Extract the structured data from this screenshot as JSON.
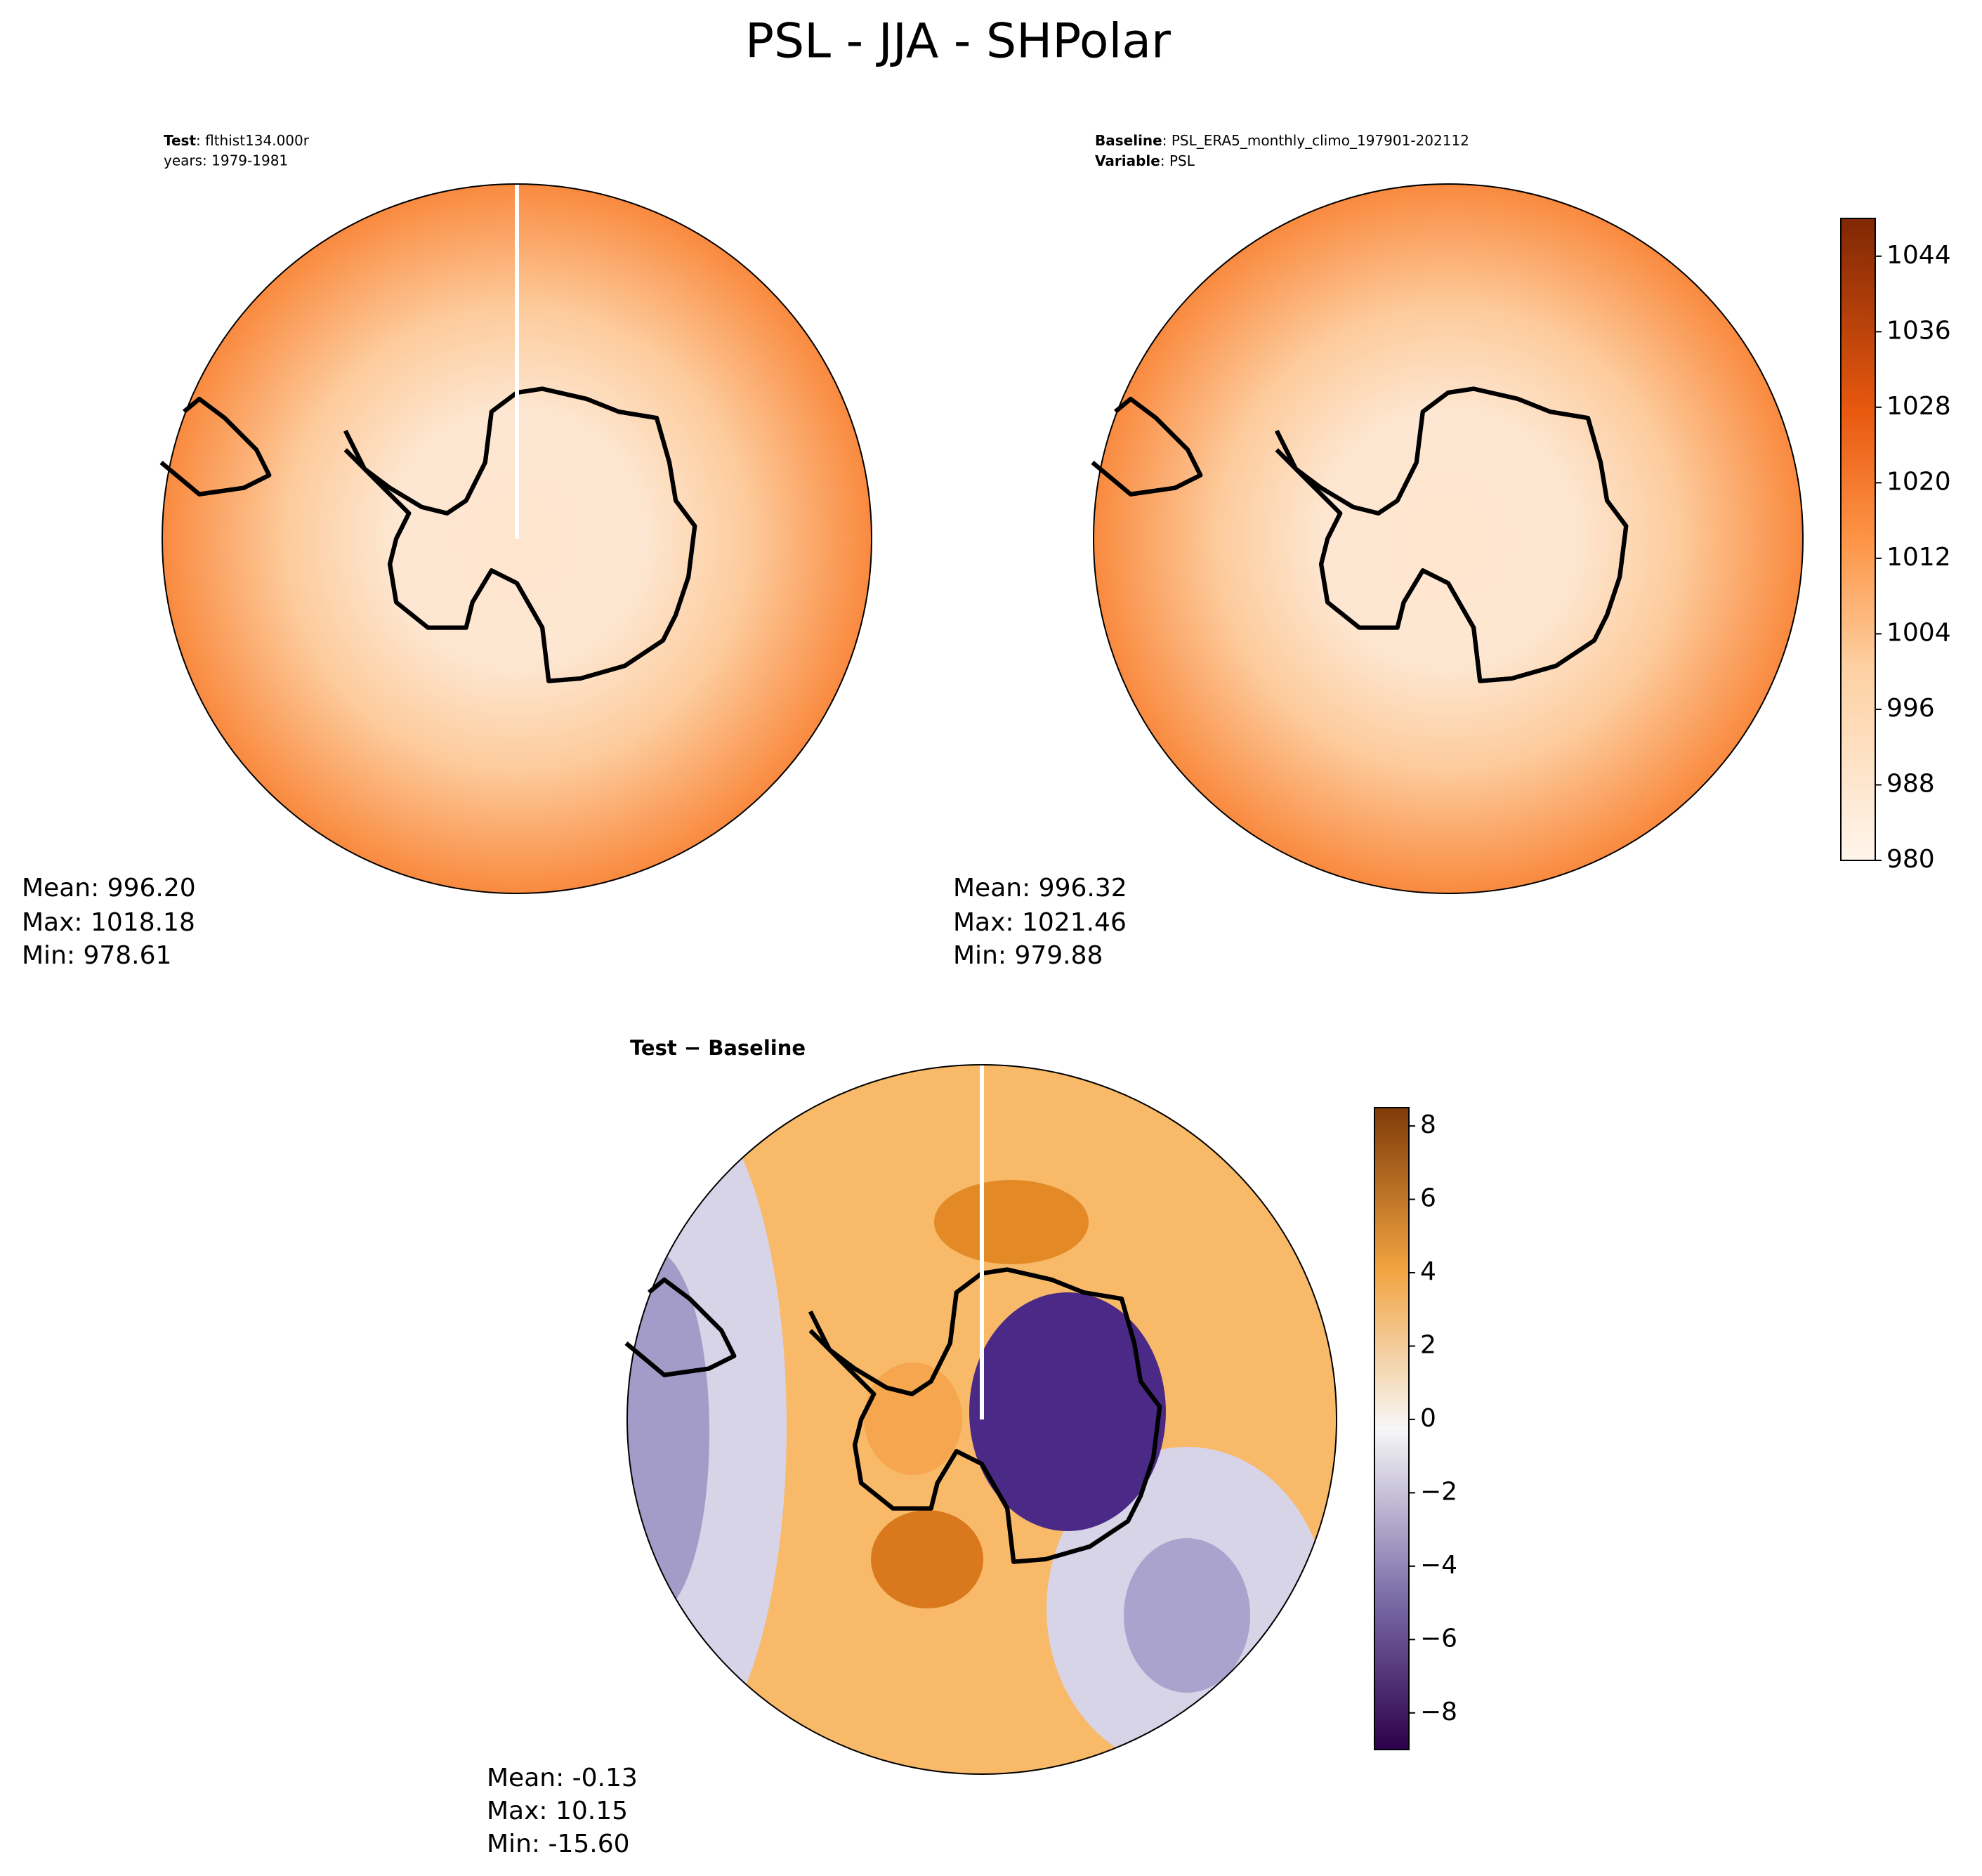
{
  "title": "PSL - JJA - SHPolar",
  "panels": [
    {
      "key1": "Test",
      "text1": ": flthist134.000r",
      "line2": "years: 1979-1981",
      "stats": [
        "Mean: 996.20",
        "Max: 1018.18",
        "Min: 978.61"
      ]
    },
    {
      "key1": "Baseline",
      "text1": ": PSL_ERA5_monthly_climo_197901-202112",
      "key2": "Variable",
      "text2": ": PSL",
      "stats": [
        "Mean: 996.32",
        "Max: 1021.46",
        "Min: 979.88"
      ]
    },
    {
      "title": "Test − Baseline",
      "stats": [
        "Mean: -0.13",
        "Max: 10.15",
        "Min: -15.60"
      ]
    }
  ],
  "colorbars": [
    {
      "ylim": [
        980,
        1048
      ],
      "yticks": [
        980,
        988,
        996,
        1004,
        1012,
        1020,
        1028,
        1036,
        1044
      ]
    },
    {
      "ylim": [
        -9,
        8.5
      ],
      "yticks": [
        {
          "value": -8,
          "label": "−8"
        },
        {
          "value": -6,
          "label": "−6"
        },
        {
          "value": -4,
          "label": "−4"
        },
        {
          "value": -2,
          "label": "−2"
        },
        0,
        2,
        4,
        6,
        8
      ]
    }
  ]
}
